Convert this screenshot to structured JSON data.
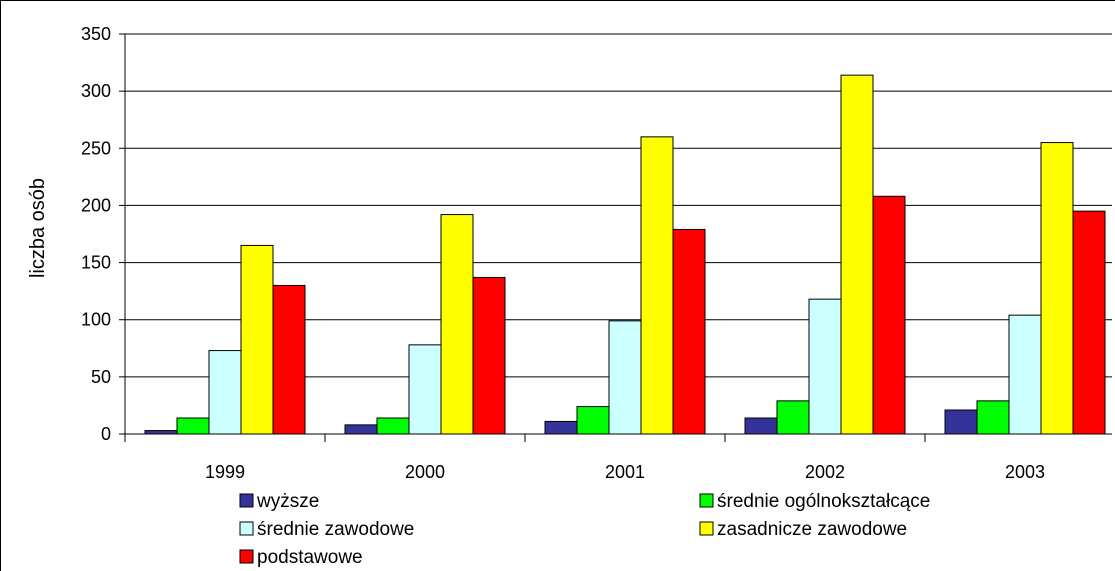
{
  "chart_data": {
    "type": "bar",
    "title": "",
    "xlabel": "",
    "ylabel": "liczba osób",
    "ylim": [
      0,
      350
    ],
    "yticks": [
      "0",
      "50",
      "100",
      "150",
      "200",
      "250",
      "300",
      "350"
    ],
    "grid": true,
    "legend_position": "bottom",
    "categories": [
      "1999",
      "2000",
      "2001",
      "2002",
      "2003"
    ],
    "series": [
      {
        "name": "wyższe",
        "color": "#333399",
        "values": [
          3,
          8,
          11,
          14,
          21
        ]
      },
      {
        "name": "średnie ogólnokształcące",
        "color": "#00ff00",
        "values": [
          14,
          14,
          24,
          29,
          29
        ]
      },
      {
        "name": "średnie zawodowe",
        "color": "#ccffff",
        "values": [
          73,
          78,
          99,
          118,
          104
        ]
      },
      {
        "name": "zasadnicze zawodowe",
        "color": "#ffff00",
        "values": [
          165,
          192,
          260,
          314,
          255
        ]
      },
      {
        "name": "podstawowe",
        "color": "#ff0000",
        "values": [
          130,
          137,
          179,
          208,
          195
        ]
      }
    ]
  }
}
